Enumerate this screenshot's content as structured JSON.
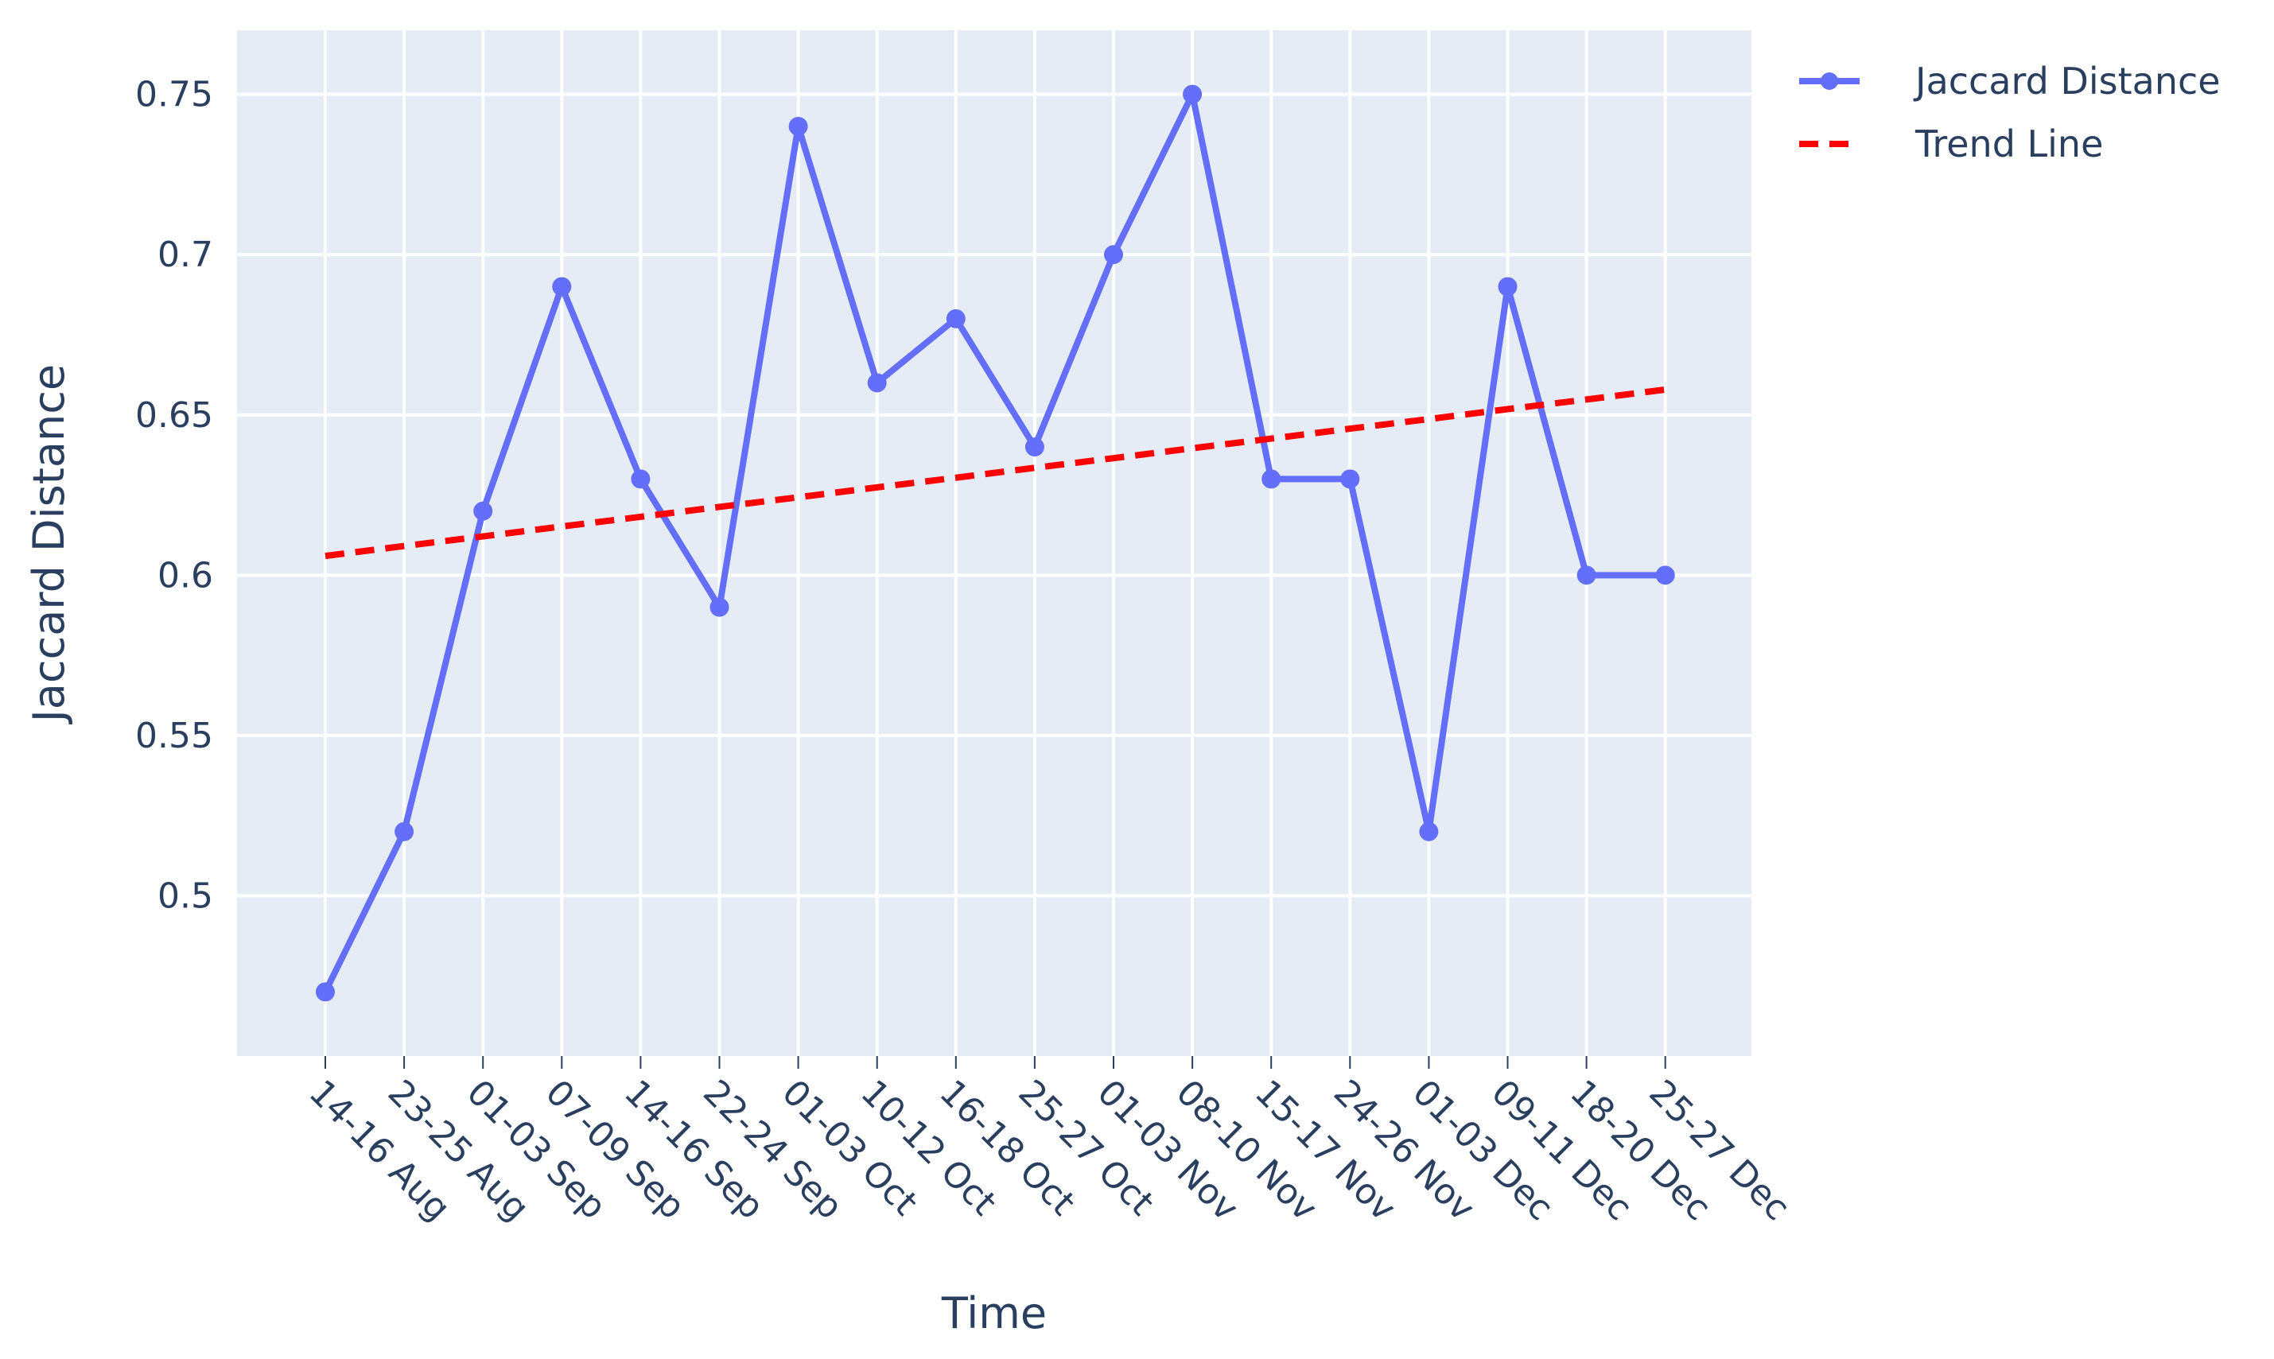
{
  "chart_data": {
    "type": "line",
    "xlabel": "Time",
    "ylabel": "Jaccard Distance",
    "categories": [
      "14-16 Aug",
      "23-25 Aug",
      "01-03 Sep",
      "07-09 Sep",
      "14-16 Sep",
      "22-24 Sep",
      "01-03 Oct",
      "10-12 Oct",
      "16-18 Oct",
      "25-27 Oct",
      "01-03 Nov",
      "08-10 Nov",
      "15-17 Nov",
      "24-26 Nov",
      "01-03 Dec",
      "09-11 Dec",
      "18-20 Dec",
      "25-27 Dec"
    ],
    "ylim": [
      0.45,
      0.77
    ],
    "yticks": [
      0.5,
      0.55,
      0.6,
      0.65,
      0.7,
      0.75
    ],
    "ytick_labels": [
      "0.5",
      "0.55",
      "0.6",
      "0.65",
      "0.7",
      "0.75"
    ],
    "grid": true,
    "legend_position": "top-right, outside plot",
    "series": [
      {
        "name": "Jaccard Distance",
        "style": "lines+markers",
        "color": "#636efa",
        "values": [
          0.47,
          0.52,
          0.62,
          0.69,
          0.63,
          0.59,
          0.74,
          0.66,
          0.68,
          0.64,
          0.7,
          0.75,
          0.63,
          0.63,
          0.52,
          0.69,
          0.6,
          0.6
        ]
      },
      {
        "name": "Trend Line",
        "style": "dashed",
        "color": "#ff0000",
        "values": [
          0.606,
          0.6091,
          0.6121,
          0.6152,
          0.6182,
          0.6213,
          0.6243,
          0.6274,
          0.6304,
          0.6335,
          0.6365,
          0.6396,
          0.6426,
          0.6457,
          0.6487,
          0.6518,
          0.6548,
          0.6579
        ]
      }
    ]
  }
}
